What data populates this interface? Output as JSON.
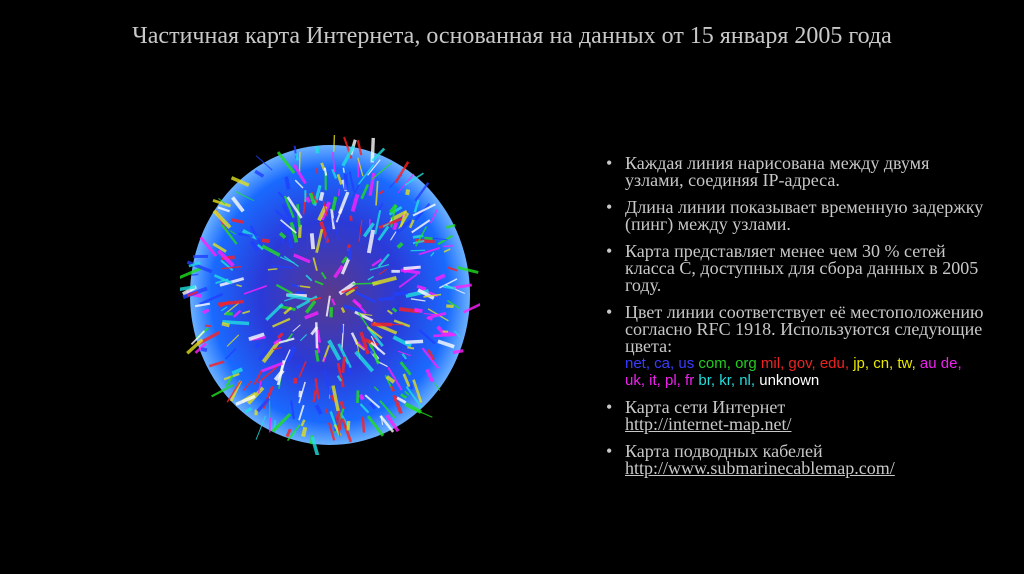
{
  "title": "Частичная карта Интернета, основанная на данных от 15 января 2005 года",
  "bullets": [
    {
      "text": "Каждая линия нарисована между двумя узлами, соединяя IP-адреса."
    },
    {
      "text": "Длина линии показывает временную задержку (пинг) между узлами."
    },
    {
      "text": "Карта представляет менее чем 30 % сетей класса C, доступных для сбора данных в 2005 году."
    },
    {
      "text": "Цвет линии соответствует её местоположению согласно RFC 1918. Используются следующие цвета:",
      "colors": [
        {
          "label": "net, ca, us",
          "color": "#3b3bff"
        },
        {
          "label": "com, org",
          "color": "#22cc22"
        },
        {
          "label": "mil, gov, edu,",
          "color": "#ee2222"
        },
        {
          "label": "jp, cn, tw,",
          "color": "#e8e800"
        },
        {
          "label": "au de, uk, it, pl, fr",
          "color": "#ee22ee"
        },
        {
          "label": "br, kr, nl,",
          "color": "#22dddd"
        },
        {
          "label": "unknown",
          "color": "#ffffff"
        }
      ]
    },
    {
      "text": "Карта сети Интернет",
      "link": "http://internet-map.net/"
    },
    {
      "text": "Карта подводных кабелей",
      "link": "http://www.submarinecablemap.com/"
    }
  ]
}
